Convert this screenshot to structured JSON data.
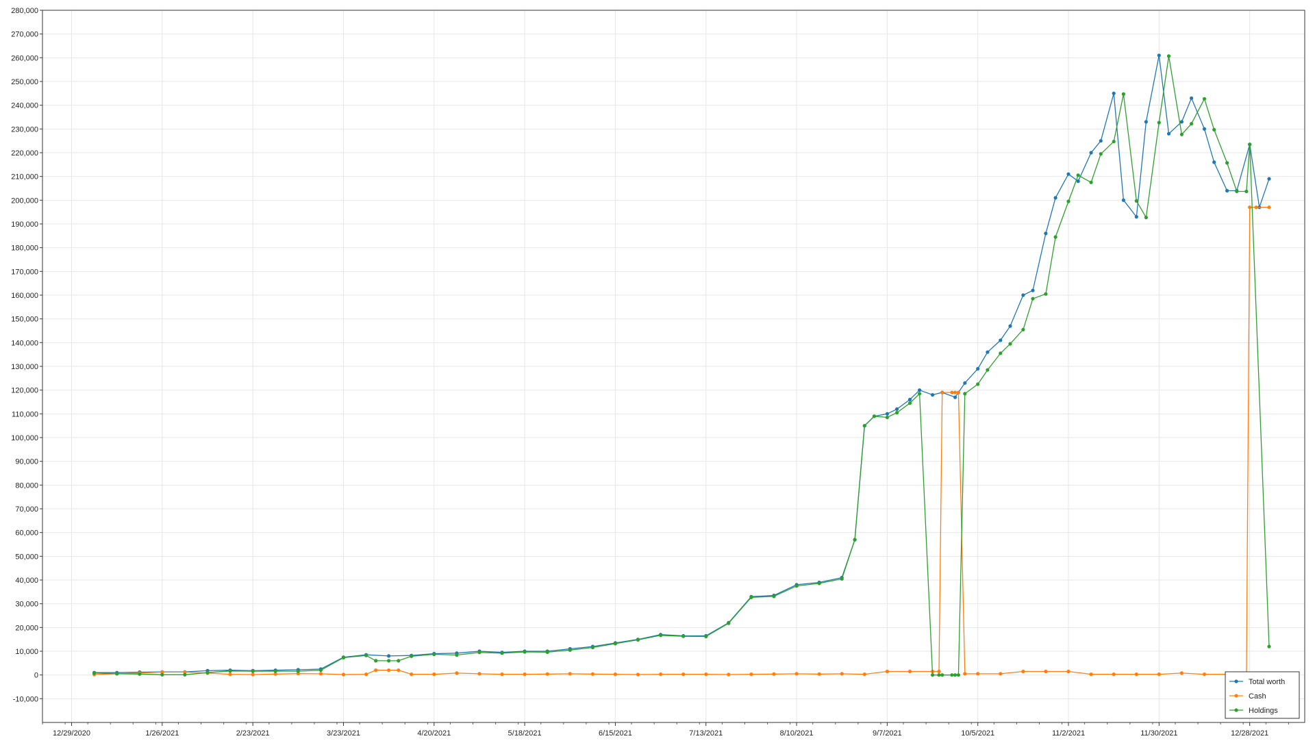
{
  "chart_data": {
    "type": "line",
    "title": "",
    "xlabel": "",
    "ylabel": "",
    "ylim": [
      -20000,
      280000
    ],
    "xlim": [
      "2020-12-20",
      "2022-01-14"
    ],
    "grid": true,
    "legend_position": "bottom-right",
    "x_tick_labels": [
      "12/29/2020",
      "1/26/2021",
      "2/23/2021",
      "3/23/2021",
      "4/20/2021",
      "5/18/2021",
      "6/15/2021",
      "7/13/2021",
      "8/10/2021",
      "9/7/2021",
      "10/5/2021",
      "11/2/2021",
      "11/30/2021",
      "12/28/2021"
    ],
    "y_tick_labels": [
      "280,000",
      "270,000",
      "260,000",
      "250,000",
      "240,000",
      "230,000",
      "220,000",
      "210,000",
      "200,000",
      "190,000",
      "180,000",
      "170,000",
      "160,000",
      "150,000",
      "140,000",
      "130,000",
      "120,000",
      "110,000",
      "100,000",
      "90,000",
      "80,000",
      "70,000",
      "60,000",
      "50,000",
      "40,000",
      "30,000",
      "20,000",
      "10,000",
      "0",
      "-10,000"
    ],
    "colors": {
      "total_worth": "#1f77b4",
      "cash": "#ff7f0e",
      "holdings": "#2ca02c"
    },
    "series": [
      {
        "name": "Total worth",
        "x": [
          "2021-01-05",
          "2021-01-12",
          "2021-01-19",
          "2021-01-26",
          "2021-02-02",
          "2021-02-09",
          "2021-02-16",
          "2021-02-23",
          "2021-03-02",
          "2021-03-09",
          "2021-03-16",
          "2021-03-23",
          "2021-03-30",
          "2021-04-06",
          "2021-04-13",
          "2021-04-20",
          "2021-04-27",
          "2021-05-04",
          "2021-05-11",
          "2021-05-18",
          "2021-05-25",
          "2021-06-01",
          "2021-06-08",
          "2021-06-15",
          "2021-06-22",
          "2021-06-29",
          "2021-07-06",
          "2021-07-13",
          "2021-07-20",
          "2021-07-27",
          "2021-08-03",
          "2021-08-10",
          "2021-08-17",
          "2021-08-24",
          "2021-08-28",
          "2021-08-31",
          "2021-09-03",
          "2021-09-07",
          "2021-09-10",
          "2021-09-14",
          "2021-09-17",
          "2021-09-21",
          "2021-09-24",
          "2021-09-28",
          "2021-10-01",
          "2021-10-05",
          "2021-10-08",
          "2021-10-12",
          "2021-10-15",
          "2021-10-19",
          "2021-10-22",
          "2021-10-26",
          "2021-10-29",
          "2021-11-02",
          "2021-11-05",
          "2021-11-09",
          "2021-11-12",
          "2021-11-16",
          "2021-11-19",
          "2021-11-23",
          "2021-11-26",
          "2021-11-30",
          "2021-12-03",
          "2021-12-07",
          "2021-12-10",
          "2021-12-14",
          "2021-12-17",
          "2021-12-21",
          "2021-12-24",
          "2021-12-28",
          "2021-12-31",
          "2022-01-03"
        ],
        "values": [
          1000,
          1000,
          1200,
          1300,
          1300,
          1800,
          2000,
          1800,
          2000,
          2200,
          2500,
          7500,
          8500,
          8000,
          8200,
          9000,
          9200,
          10000,
          9500,
          10000,
          10000,
          11000,
          12000,
          13500,
          15000,
          17000,
          16500,
          16500,
          22000,
          33000,
          33500,
          38000,
          39000,
          41000,
          57000,
          105000,
          109000,
          110000,
          112000,
          116000,
          120000,
          118000,
          119000,
          117000,
          123000,
          129000,
          136000,
          141000,
          147000,
          160000,
          162000,
          186000,
          201000,
          211000,
          208000,
          220000,
          225000,
          245000,
          200000,
          193000,
          233000,
          261000,
          228000,
          233000,
          243000,
          230000,
          216000,
          204000,
          204000,
          223500,
          197000,
          209000
        ]
      },
      {
        "name": "Cash",
        "x": [
          "2021-01-05",
          "2021-01-12",
          "2021-01-19",
          "2021-01-26",
          "2021-02-02",
          "2021-02-09",
          "2021-02-16",
          "2021-02-23",
          "2021-03-02",
          "2021-03-09",
          "2021-03-16",
          "2021-03-23",
          "2021-03-30",
          "2021-04-02",
          "2021-04-06",
          "2021-04-09",
          "2021-04-13",
          "2021-04-20",
          "2021-04-27",
          "2021-05-04",
          "2021-05-11",
          "2021-05-18",
          "2021-05-25",
          "2021-06-01",
          "2021-06-08",
          "2021-06-15",
          "2021-06-22",
          "2021-06-29",
          "2021-07-06",
          "2021-07-13",
          "2021-07-20",
          "2021-07-27",
          "2021-08-03",
          "2021-08-10",
          "2021-08-17",
          "2021-08-24",
          "2021-08-31",
          "2021-09-07",
          "2021-09-14",
          "2021-09-21",
          "2021-09-23",
          "2021-09-24",
          "2021-09-27",
          "2021-09-28",
          "2021-09-29",
          "2021-10-01",
          "2021-10-05",
          "2021-10-12",
          "2021-10-19",
          "2021-10-26",
          "2021-11-02",
          "2021-11-09",
          "2021-11-16",
          "2021-11-23",
          "2021-11-30",
          "2021-12-07",
          "2021-12-14",
          "2021-12-21",
          "2021-12-27",
          "2021-12-28",
          "2021-12-30",
          "2022-01-03"
        ],
        "values": [
          200,
          500,
          800,
          1200,
          1200,
          800,
          300,
          200,
          400,
          600,
          500,
          200,
          300,
          2000,
          2000,
          2000,
          300,
          300,
          800,
          500,
          300,
          300,
          400,
          500,
          400,
          300,
          200,
          300,
          300,
          300,
          200,
          300,
          400,
          500,
          400,
          500,
          300,
          1500,
          1500,
          1500,
          1500,
          119000,
          119000,
          119000,
          119000,
          500,
          500,
          500,
          1500,
          1500,
          1500,
          300,
          300,
          300,
          300,
          800,
          300,
          300,
          300,
          197000,
          197000,
          197000
        ]
      },
      {
        "name": "Holdings",
        "x": [
          "2021-01-05",
          "2021-01-12",
          "2021-01-19",
          "2021-01-26",
          "2021-02-02",
          "2021-02-09",
          "2021-02-16",
          "2021-02-23",
          "2021-03-02",
          "2021-03-09",
          "2021-03-16",
          "2021-03-23",
          "2021-03-30",
          "2021-04-02",
          "2021-04-06",
          "2021-04-09",
          "2021-04-13",
          "2021-04-20",
          "2021-04-27",
          "2021-05-04",
          "2021-05-11",
          "2021-05-18",
          "2021-05-25",
          "2021-06-01",
          "2021-06-08",
          "2021-06-15",
          "2021-06-22",
          "2021-06-29",
          "2021-07-06",
          "2021-07-13",
          "2021-07-20",
          "2021-07-27",
          "2021-08-03",
          "2021-08-10",
          "2021-08-17",
          "2021-08-24",
          "2021-08-28",
          "2021-08-31",
          "2021-09-03",
          "2021-09-07",
          "2021-09-10",
          "2021-09-14",
          "2021-09-17",
          "2021-09-21",
          "2021-09-23",
          "2021-09-24",
          "2021-09-27",
          "2021-09-28",
          "2021-09-29",
          "2021-10-01",
          "2021-10-05",
          "2021-10-08",
          "2021-10-12",
          "2021-10-15",
          "2021-10-19",
          "2021-10-22",
          "2021-10-26",
          "2021-10-29",
          "2021-11-02",
          "2021-11-05",
          "2021-11-09",
          "2021-11-12",
          "2021-11-16",
          "2021-11-19",
          "2021-11-23",
          "2021-11-26",
          "2021-11-30",
          "2021-12-03",
          "2021-12-07",
          "2021-12-10",
          "2021-12-14",
          "2021-12-17",
          "2021-12-21",
          "2021-12-24",
          "2021-12-27",
          "2021-12-28",
          "2022-01-03"
        ],
        "values": [
          800,
          500,
          400,
          100,
          100,
          1000,
          1700,
          1600,
          1600,
          1600,
          2000,
          7300,
          8200,
          6000,
          6000,
          6000,
          7900,
          8700,
          8400,
          9500,
          9200,
          9700,
          9600,
          10500,
          11600,
          13200,
          14800,
          16700,
          16300,
          16200,
          21800,
          32700,
          33100,
          37500,
          38600,
          40500,
          57000,
          105000,
          109000,
          108500,
          110500,
          114500,
          118500,
          0,
          0,
          0,
          0,
          0,
          0,
          118500,
          122500,
          128500,
          135500,
          139500,
          145500,
          158500,
          160500,
          184500,
          199500,
          210500,
          207500,
          219500,
          224700,
          244700,
          199700,
          192700,
          232700,
          260700,
          227700,
          232200,
          242700,
          229700,
          215700,
          203700,
          203700,
          223500,
          12000
        ]
      }
    ]
  }
}
